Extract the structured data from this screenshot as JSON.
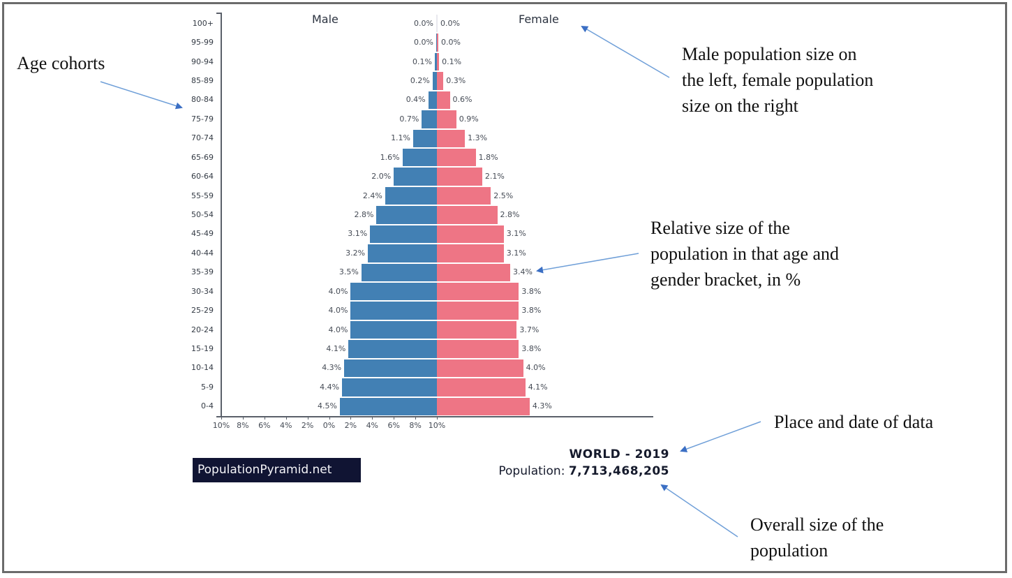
{
  "chart_data": {
    "type": "bar",
    "subtype": "population-pyramid",
    "title": "WORLD - 2019",
    "categories": [
      "0-4",
      "5-9",
      "10-14",
      "15-19",
      "20-24",
      "25-29",
      "30-34",
      "35-39",
      "40-44",
      "45-49",
      "50-54",
      "55-59",
      "60-64",
      "65-69",
      "70-74",
      "75-79",
      "80-84",
      "85-89",
      "90-94",
      "95-99",
      "100+"
    ],
    "series": [
      {
        "name": "Male",
        "color": "#4280b4",
        "values": [
          4.5,
          4.4,
          4.3,
          4.1,
          4.0,
          4.0,
          4.0,
          3.5,
          3.2,
          3.1,
          2.8,
          2.4,
          2.0,
          1.6,
          1.1,
          0.7,
          0.4,
          0.2,
          0.1,
          0.0,
          0.0
        ]
      },
      {
        "name": "Female",
        "color": "#ee7585",
        "values": [
          4.3,
          4.1,
          4.0,
          3.8,
          3.7,
          3.8,
          3.8,
          3.4,
          3.1,
          3.1,
          2.8,
          2.5,
          2.1,
          1.8,
          1.3,
          0.9,
          0.6,
          0.3,
          0.1,
          0.0,
          0.0
        ]
      }
    ],
    "xlabel": "",
    "ylabel": "",
    "x_ticks": [
      "10%",
      "8%",
      "6%",
      "4%",
      "2%",
      "0%",
      "2%",
      "4%",
      "6%",
      "8%",
      "10%"
    ],
    "xlim": [
      -10,
      10
    ],
    "grid": false,
    "legend_position": "top (Male left, Female right)"
  },
  "labels": {
    "male": "Male",
    "female": "Female",
    "brand": "PopulationPyramid.net",
    "place_date": "WORLD - 2019",
    "population_prefix": "Population:",
    "population_value": "7,713,468,205"
  },
  "annotations": {
    "age_cohorts": "Age cohorts",
    "male_female": [
      "Male population size on",
      "the left, female population",
      "size on the right"
    ],
    "relative_size": [
      "Relative size of the",
      "population in that age and",
      "gender bracket, in %"
    ],
    "place_date": "Place and date of data",
    "overall_size": [
      "Overall size of the",
      "population"
    ]
  },
  "colors": {
    "male": "#4280b4",
    "female": "#ee7585",
    "arrow": "#6f9fd8",
    "arrowhead": "#3b6fc4",
    "brand_bg": "#101433"
  }
}
